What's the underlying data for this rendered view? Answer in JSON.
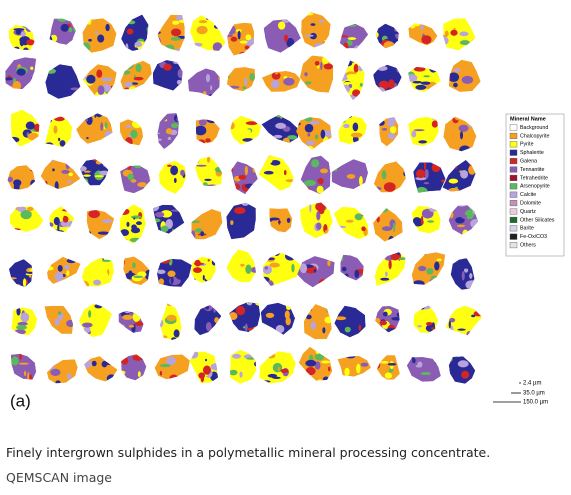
{
  "figure": {
    "panel_label": "(a)",
    "legend": {
      "title": "Mineral Name",
      "items": [
        {
          "name": "Background",
          "color": "#ffffff"
        },
        {
          "name": "Chalcopyrite",
          "color": "#f5a020"
        },
        {
          "name": "Pyrite",
          "color": "#ffff10"
        },
        {
          "name": "Sphalerite",
          "color": "#2a2a96"
        },
        {
          "name": "Galena",
          "color": "#d42424"
        },
        {
          "name": "Tennantite",
          "color": "#8a5cb4"
        },
        {
          "name": "Tetrahedrite",
          "color": "#a01030"
        },
        {
          "name": "Arsenopyrite",
          "color": "#5cb85c"
        },
        {
          "name": "Calcite",
          "color": "#b8a4dc"
        },
        {
          "name": "Dolomite",
          "color": "#c890c0"
        },
        {
          "name": "Quartz",
          "color": "#f0c8e0"
        },
        {
          "name": "Other Silicates",
          "color": "#1e6a2a"
        },
        {
          "name": "Barite",
          "color": "#d0d4ec"
        },
        {
          "name": "Fe-Ox/CO3",
          "color": "#202020"
        },
        {
          "name": "Others",
          "color": "#e4e4e4"
        }
      ]
    },
    "scale_bars": [
      "2.4 µm",
      "35.0 µm",
      "150.0 µm"
    ]
  },
  "caption": "Finely intergrown sulphides in a polymetallic mineral processing concentrate.",
  "credit": "QEMSCAN image"
}
